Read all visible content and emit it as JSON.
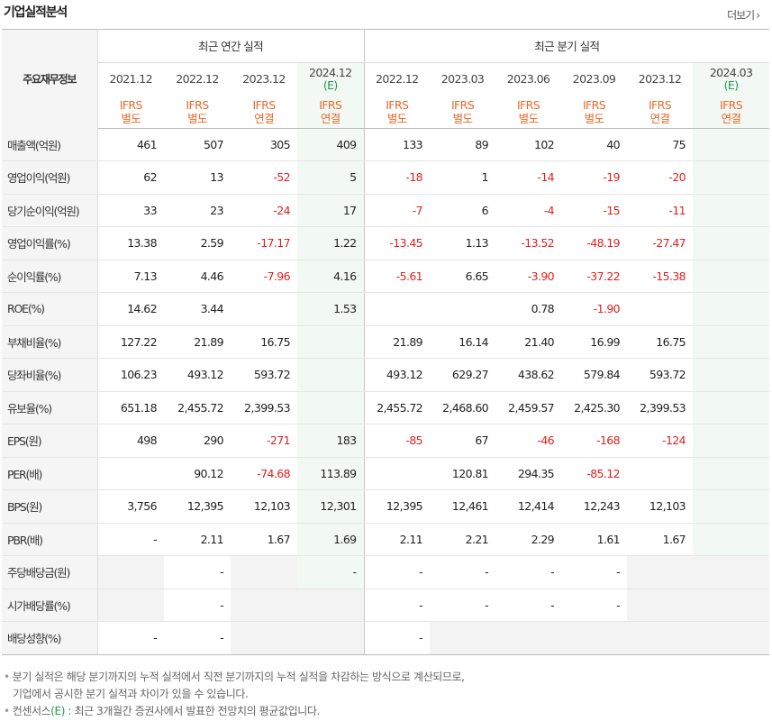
{
  "header": {
    "title": "기업실적분석",
    "more_label": "더보기",
    "more_icon": "chevron-right-icon"
  },
  "groups": {
    "row_header": "주요재무정보",
    "annual": "최근 연간 실적",
    "quarterly": "최근 분기 실적"
  },
  "periods": [
    {
      "date": "2021.12",
      "est": "",
      "acc1": "IFRS",
      "acc2": "별도"
    },
    {
      "date": "2022.12",
      "est": "",
      "acc1": "IFRS",
      "acc2": "별도"
    },
    {
      "date": "2023.12",
      "est": "",
      "acc1": "IFRS",
      "acc2": "연결"
    },
    {
      "date": "2024.12",
      "est": "(E)",
      "acc1": "IFRS",
      "acc2": "연결"
    },
    {
      "date": "2022.12",
      "est": "",
      "acc1": "IFRS",
      "acc2": "별도"
    },
    {
      "date": "2023.03",
      "est": "",
      "acc1": "IFRS",
      "acc2": "별도"
    },
    {
      "date": "2023.06",
      "est": "",
      "acc1": "IFRS",
      "acc2": "별도"
    },
    {
      "date": "2023.09",
      "est": "",
      "acc1": "IFRS",
      "acc2": "별도"
    },
    {
      "date": "2023.12",
      "est": "",
      "acc1": "IFRS",
      "acc2": "연결"
    },
    {
      "date": "2024.03",
      "est": "(E)",
      "acc1": "IFRS",
      "acc2": "연결"
    }
  ],
  "rows": [
    {
      "label": "매출액(억원)",
      "values": [
        "461",
        "507",
        "305",
        "409",
        "133",
        "89",
        "102",
        "40",
        "75",
        ""
      ]
    },
    {
      "label": "영업이익(억원)",
      "values": [
        "62",
        "13",
        "-52",
        "5",
        "-18",
        "1",
        "-14",
        "-19",
        "-20",
        ""
      ]
    },
    {
      "label": "당기순이익(억원)",
      "values": [
        "33",
        "23",
        "-24",
        "17",
        "-7",
        "6",
        "-4",
        "-15",
        "-11",
        ""
      ]
    },
    {
      "label": "영업이익률(%)",
      "values": [
        "13.38",
        "2.59",
        "-17.17",
        "1.22",
        "-13.45",
        "1.13",
        "-13.52",
        "-48.19",
        "-27.47",
        ""
      ]
    },
    {
      "label": "순이익률(%)",
      "values": [
        "7.13",
        "4.46",
        "-7.96",
        "4.16",
        "-5.61",
        "6.65",
        "-3.90",
        "-37.22",
        "-15.38",
        ""
      ]
    },
    {
      "label": "ROE(%)",
      "values": [
        "14.62",
        "3.44",
        "",
        "1.53",
        "",
        "",
        "0.78",
        "-1.90",
        "",
        ""
      ]
    },
    {
      "label": "부채비율(%)",
      "values": [
        "127.22",
        "21.89",
        "16.75",
        "",
        "21.89",
        "16.14",
        "21.40",
        "16.99",
        "16.75",
        ""
      ]
    },
    {
      "label": "당좌비율(%)",
      "values": [
        "106.23",
        "493.12",
        "593.72",
        "",
        "493.12",
        "629.27",
        "438.62",
        "579.84",
        "593.72",
        ""
      ]
    },
    {
      "label": "유보율(%)",
      "values": [
        "651.18",
        "2,455.72",
        "2,399.53",
        "",
        "2,455.72",
        "2,468.60",
        "2,459.57",
        "2,425.30",
        "2,399.53",
        ""
      ]
    },
    {
      "label": "EPS(원)",
      "values": [
        "498",
        "290",
        "-271",
        "183",
        "-85",
        "67",
        "-46",
        "-168",
        "-124",
        ""
      ]
    },
    {
      "label": "PER(배)",
      "values": [
        "",
        "90.12",
        "-74.68",
        "113.89",
        "",
        "120.81",
        "294.35",
        "-85.12",
        "",
        ""
      ]
    },
    {
      "label": "BPS(원)",
      "values": [
        "3,756",
        "12,395",
        "12,103",
        "12,301",
        "12,395",
        "12,461",
        "12,414",
        "12,243",
        "12,103",
        ""
      ]
    },
    {
      "label": "PBR(배)",
      "values": [
        "-",
        "2.11",
        "1.67",
        "1.69",
        "2.11",
        "2.21",
        "2.29",
        "1.61",
        "1.67",
        ""
      ]
    },
    {
      "label": "주당배당금(원)",
      "values": [
        "",
        "-",
        "",
        "-",
        "-",
        "-",
        "-",
        "-",
        "",
        ""
      ]
    },
    {
      "label": "시가배당률(%)",
      "values": [
        "",
        "-",
        "",
        "",
        "-",
        "-",
        "-",
        "-",
        "",
        ""
      ]
    },
    {
      "label": "배당성향(%)",
      "values": [
        "-",
        "-",
        "",
        "",
        "-",
        "",
        "",
        "",
        "",
        ""
      ]
    }
  ],
  "gray_cells": [
    [
      13,
      0
    ],
    [
      13,
      2
    ],
    [
      13,
      8
    ],
    [
      13,
      9
    ],
    [
      14,
      0
    ],
    [
      14,
      2
    ],
    [
      14,
      3
    ],
    [
      14,
      8
    ],
    [
      14,
      9
    ],
    [
      15,
      2
    ],
    [
      15,
      3
    ],
    [
      15,
      5
    ],
    [
      15,
      6
    ],
    [
      15,
      7
    ],
    [
      15,
      8
    ],
    [
      15,
      9
    ]
  ],
  "notes": {
    "line1": "분기 실적은 해당 분기까지의 누적 실적에서 직전 분기까지의 누적 실적을 차감하는 방식으로 계산되므로,",
    "line2": "기업에서 공시한 분기 실적과 차이가 있을 수 있습니다.",
    "line3_prefix": "컨센서스",
    "line3_mark": "(E)",
    "line3_suffix": " : 최근 3개월간 증권사에서 발표한 전망치의 평균값입니다."
  },
  "colors": {
    "negative": "#e02020",
    "accounting": "#e8692a",
    "estimate_mark": "#1e9a50",
    "estimate_bg": "#f2f9f4",
    "gray_bg": "#f3f3f3",
    "label_bg": "#f5f5f5"
  }
}
